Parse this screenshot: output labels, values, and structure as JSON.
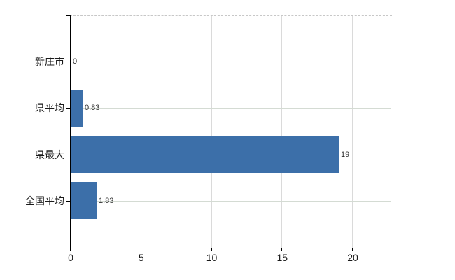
{
  "chart_data": {
    "type": "bar",
    "orientation": "horizontal",
    "title": "",
    "xlabel": "",
    "ylabel": "",
    "categories": [
      "新庄市",
      "県平均",
      "県最大",
      "全国平均"
    ],
    "values": [
      0,
      0.83,
      19,
      1.83
    ],
    "value_labels": [
      "0",
      "0.83",
      "19",
      "1.83"
    ],
    "x_ticks": [
      0,
      5,
      10,
      15,
      20
    ],
    "x_tick_labels": [
      "0",
      "5",
      "10",
      "15",
      "20"
    ],
    "xlim": [
      0,
      22.8
    ],
    "grid": true,
    "legend": "none",
    "colors": {
      "bar": "#3c6fa9",
      "h_gridline": "#d4dbd3",
      "v_gridline": "#dadada",
      "top_border": "#c7c7c7",
      "axis": "#000000",
      "category_label": "#1a1a1a",
      "tick_label": "#1a1a1a",
      "value_label": "#2e2e2e",
      "background": "#ffffff"
    }
  }
}
